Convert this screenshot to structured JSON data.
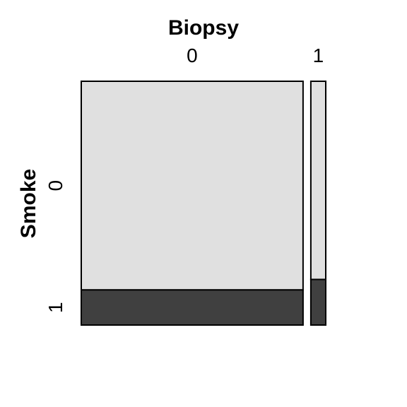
{
  "chart_data": {
    "type": "mosaic",
    "xlabel": "Biopsy",
    "ylabel": "Smoke",
    "x_categories": [
      "0",
      "1"
    ],
    "y_categories": [
      "0",
      "1"
    ],
    "x_proportions": [
      0.937,
      0.063
    ],
    "conditional_y_proportions": {
      "0": [
        0.856,
        0.144
      ],
      "1": [
        0.813,
        0.187
      ]
    },
    "colors": {
      "0": "#e0e0e0",
      "1": "#404040",
      "border": "#000000"
    }
  }
}
